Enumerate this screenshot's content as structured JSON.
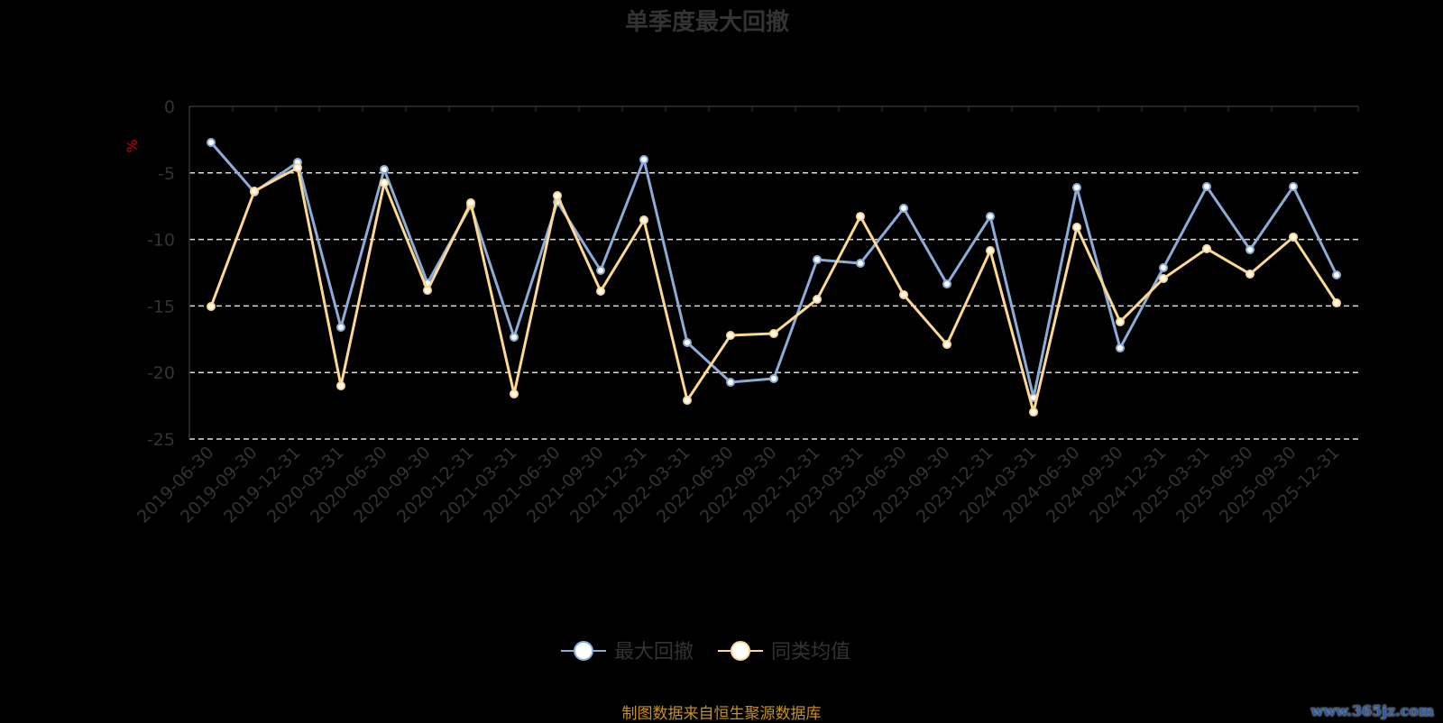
{
  "chart_data": {
    "type": "line",
    "title": "单季度最大回撤",
    "ylabel": "%",
    "xlabel": "",
    "ylim": [
      -25,
      0
    ],
    "yticks": [
      0,
      -5,
      -10,
      -15,
      -20,
      -25
    ],
    "grid": true,
    "legend_position": "bottom-center",
    "categories": [
      "2019-06-30",
      "2019-09-30",
      "2019-12-31",
      "2020-03-31",
      "2020-06-30",
      "2020-09-30",
      "2020-12-31",
      "2021-03-31",
      "2021-06-30",
      "2021-09-30",
      "2021-12-31",
      "2022-03-31",
      "2022-06-30",
      "2022-09-30",
      "2022-12-31",
      "2023-03-31",
      "2023-06-30",
      "2023-09-30",
      "2023-12-31",
      "2024-03-31",
      "2024-06-30",
      "2024-09-30",
      "2024-12-31",
      "2025-03-31",
      "2025-06-30",
      "2025-09-30",
      "2025-12-31"
    ],
    "series": [
      {
        "name": "最大回撤",
        "color": "#8cacd8",
        "values": [
          -2.71,
          -6.44,
          -4.2,
          -16.6,
          -4.74,
          -13.28,
          -7.45,
          -17.34,
          -7.18,
          -12.33,
          -4.0,
          -17.75,
          -20.73,
          -20.46,
          -11.52,
          -11.79,
          -7.66,
          -13.35,
          -8.27,
          -21.88,
          -6.1,
          -18.16,
          -12.13,
          -6.03,
          -10.77,
          -6.03,
          -12.67
        ]
      },
      {
        "name": "同类均值",
        "color": "#fcd890",
        "values": [
          -15.04,
          -6.37,
          -4.61,
          -21.0,
          -5.76,
          -13.82,
          -7.25,
          -21.61,
          -6.71,
          -13.89,
          -8.54,
          -22.09,
          -17.21,
          -17.07,
          -14.5,
          -8.27,
          -14.16,
          -17.89,
          -10.84,
          -22.97,
          -9.08,
          -16.19,
          -12.94,
          -10.7,
          -12.6,
          -9.82,
          -14.77
        ]
      }
    ]
  },
  "footer": {
    "source": "制图数据来自恒生聚源数据库"
  },
  "watermark": "www.365jz.com"
}
